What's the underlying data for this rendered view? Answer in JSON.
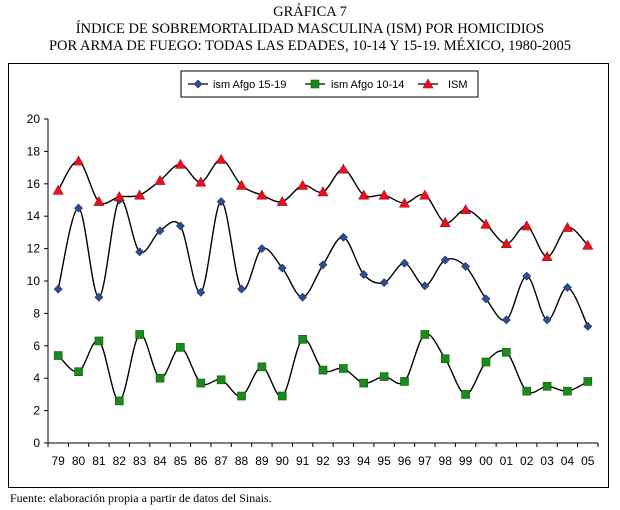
{
  "header": {
    "figure_label": "GRÁFICA 7",
    "title_line1": "ÍNDICE DE SOBREMORTALIDAD MASCULINA (ISM) POR HOMICIDIOS",
    "title_line2": "POR ARMA DE FUEGO: TODAS LAS EDADES, 10-14 Y 15-19. MÉXICO, 1980-2005"
  },
  "source_note": "Fuente: elaboración propia a partir de datos del Sinais.",
  "chart_data": {
    "type": "line",
    "title": "ÍNDICE DE SOBREMORTALIDAD MASCULINA (ISM) POR HOMICIDIOS POR ARMA DE FUEGO: TODAS LAS EDADES, 10-14 Y 15-19. MÉXICO, 1980-2005",
    "xlabel": "",
    "ylabel": "",
    "ylim": [
      0,
      20
    ],
    "yticks": [
      0,
      2,
      4,
      6,
      8,
      10,
      12,
      14,
      16,
      18,
      20
    ],
    "grid": false,
    "legend_position": "top-center",
    "smooth": true,
    "categories": [
      "79",
      "80",
      "81",
      "82",
      "83",
      "84",
      "85",
      "86",
      "87",
      "88",
      "89",
      "90",
      "91",
      "92",
      "93",
      "94",
      "95",
      "96",
      "97",
      "98",
      "99",
      "00",
      "01",
      "02",
      "03",
      "04",
      "05"
    ],
    "series": [
      {
        "name": "ism Afgo 15-19",
        "color": "#2c4f94",
        "marker": "diamond",
        "values": [
          9.5,
          14.5,
          9.0,
          15.0,
          11.8,
          13.1,
          13.4,
          9.3,
          14.9,
          9.5,
          12.0,
          10.8,
          9.0,
          11.0,
          12.7,
          10.4,
          9.9,
          11.1,
          9.7,
          11.3,
          10.9,
          8.9,
          7.6,
          10.3,
          7.6,
          9.6,
          7.2
        ]
      },
      {
        "name": "ism Afgo 10-14",
        "color": "#1a8a1a",
        "marker": "square",
        "values": [
          5.4,
          4.4,
          6.3,
          2.6,
          6.7,
          4.0,
          5.9,
          3.7,
          3.9,
          2.9,
          4.7,
          2.9,
          6.4,
          4.5,
          4.6,
          3.7,
          4.1,
          3.8,
          6.7,
          5.2,
          3.0,
          5.0,
          5.6,
          3.2,
          3.5,
          3.2,
          3.8
        ]
      },
      {
        "name": "ISM",
        "color": "#e8101c",
        "marker": "triangle",
        "values": [
          15.6,
          17.4,
          14.9,
          15.2,
          15.3,
          16.2,
          17.2,
          16.1,
          17.5,
          15.9,
          15.3,
          14.9,
          15.9,
          15.5,
          16.9,
          15.3,
          15.3,
          14.8,
          15.3,
          13.6,
          14.4,
          13.5,
          12.3,
          13.4,
          11.5,
          13.3,
          12.2
        ]
      }
    ]
  }
}
